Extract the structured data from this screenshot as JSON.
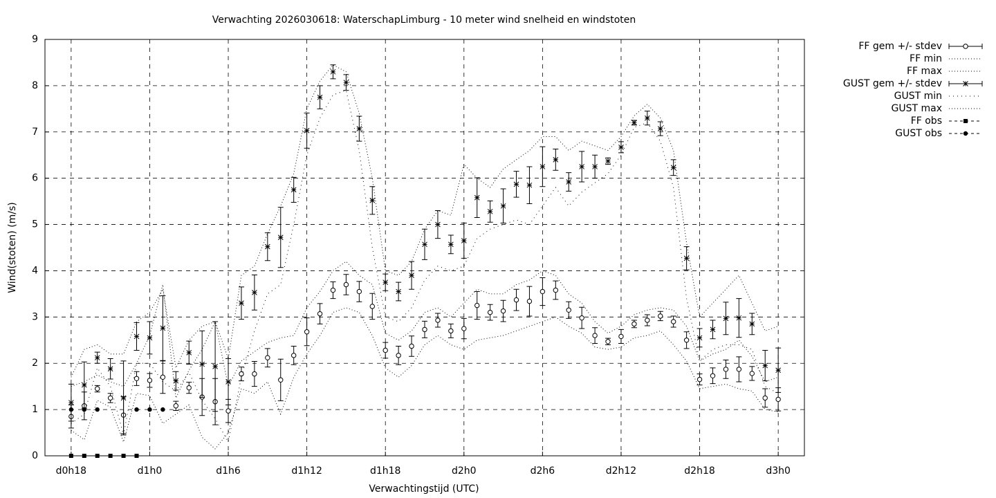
{
  "chart_data": {
    "type": "errorbar",
    "title": "Verwachting 2026030618: WaterschapLimburg - 10 meter wind snelheid en windstoten",
    "xlabel": "Verwachtingstijd (UTC)",
    "ylabel": "Wind(stoten) (m/s)",
    "grid": true,
    "legend": "outside-right",
    "x": [
      0,
      1,
      2,
      3,
      4,
      5,
      6,
      7,
      8,
      9,
      10,
      11,
      12,
      13,
      14,
      15,
      16,
      17,
      18,
      19,
      20,
      21,
      22,
      23,
      24,
      25,
      26,
      27,
      28,
      29,
      30,
      31,
      32,
      33,
      34,
      35,
      36,
      37,
      38,
      39,
      40,
      41,
      42,
      43,
      44,
      45,
      46,
      47,
      48,
      49,
      50,
      51,
      52,
      53,
      54
    ],
    "xlim": [
      -2,
      56
    ],
    "xticks": [
      {
        "value": 0,
        "label": "d0h18"
      },
      {
        "value": 6,
        "label": "d1h0"
      },
      {
        "value": 12,
        "label": "d1h6"
      },
      {
        "value": 18,
        "label": "d1h12"
      },
      {
        "value": 24,
        "label": "d1h18"
      },
      {
        "value": 30,
        "label": "d2h0"
      },
      {
        "value": 36,
        "label": "d2h6"
      },
      {
        "value": 42,
        "label": "d2h12"
      },
      {
        "value": 48,
        "label": "d2h18"
      },
      {
        "value": 54,
        "label": "d3h0"
      }
    ],
    "ylim": [
      0,
      9
    ],
    "yticks": [
      0,
      1,
      2,
      3,
      4,
      5,
      6,
      7,
      8,
      9
    ],
    "series": [
      {
        "name": "FF gem +/- stdev",
        "color": "#000000",
        "style": "errorbar",
        "marker": "circle",
        "values": [
          0.85,
          1.08,
          1.45,
          1.25,
          0.88,
          1.67,
          1.63,
          1.7,
          1.08,
          1.47,
          1.27,
          1.17,
          0.97,
          1.77,
          1.77,
          2.12,
          1.64,
          2.17,
          2.68,
          3.07,
          3.58,
          3.7,
          3.55,
          3.23,
          2.28,
          2.17,
          2.37,
          2.73,
          2.93,
          2.7,
          2.75,
          3.25,
          3.1,
          3.13,
          3.37,
          3.34,
          3.55,
          3.58,
          3.15,
          2.98,
          2.6,
          2.47,
          2.58,
          2.85,
          2.93,
          3.02,
          2.9,
          2.5,
          1.65,
          1.73,
          1.87,
          1.87,
          1.78,
          1.25,
          1.22
        ],
        "errors": [
          0.25,
          0.3,
          0.07,
          0.1,
          0.4,
          0.15,
          0.15,
          0.35,
          0.1,
          0.12,
          0.4,
          0.5,
          0.25,
          0.15,
          0.27,
          0.2,
          0.45,
          0.2,
          0.3,
          0.22,
          0.18,
          0.22,
          0.22,
          0.28,
          0.17,
          0.2,
          0.22,
          0.18,
          0.15,
          0.15,
          0.22,
          0.3,
          0.17,
          0.23,
          0.23,
          0.32,
          0.3,
          0.2,
          0.18,
          0.23,
          0.17,
          0.07,
          0.15,
          0.08,
          0.12,
          0.1,
          0.12,
          0.18,
          0.12,
          0.17,
          0.2,
          0.27,
          0.15,
          0.2,
          0.25
        ]
      },
      {
        "name": "FF min",
        "color": "#000000",
        "style": "dotted",
        "values": [
          0.55,
          0.35,
          1.2,
          1.05,
          0.3,
          1.35,
          1.3,
          0.7,
          0.9,
          1.1,
          0.4,
          0.15,
          0.5,
          1.45,
          1.35,
          1.6,
          0.9,
          1.7,
          2.2,
          2.6,
          3.1,
          3.2,
          3.1,
          2.6,
          1.9,
          1.7,
          1.95,
          2.4,
          2.6,
          2.4,
          2.3,
          2.5,
          2.55,
          2.6,
          2.7,
          2.8,
          2.9,
          3.0,
          2.8,
          2.65,
          2.35,
          2.3,
          2.35,
          2.55,
          2.6,
          2.7,
          2.4,
          2.05,
          1.45,
          1.5,
          1.55,
          1.45,
          1.4,
          1.0,
          0.95
        ]
      },
      {
        "name": "FF max",
        "color": "#000000",
        "style": "dotted",
        "values": [
          1.5,
          1.6,
          1.75,
          1.6,
          1.5,
          2.0,
          2.6,
          3.7,
          1.25,
          1.85,
          2.3,
          2.9,
          1.5,
          2.05,
          2.25,
          2.45,
          2.55,
          2.6,
          3.2,
          3.55,
          4.0,
          4.2,
          3.9,
          3.7,
          2.65,
          2.5,
          2.7,
          3.1,
          3.2,
          3.0,
          3.3,
          3.6,
          3.5,
          3.5,
          3.7,
          3.8,
          4.0,
          3.9,
          3.5,
          3.3,
          2.9,
          2.65,
          2.8,
          3.05,
          3.15,
          3.2,
          3.15,
          2.8,
          2.05,
          2.2,
          2.3,
          2.5,
          2.15,
          1.6,
          1.7
        ]
      },
      {
        "name": "GUST gem +/- stdev",
        "color": "#000000",
        "style": "errorbar",
        "marker": "star",
        "values": [
          1.15,
          1.53,
          2.12,
          1.88,
          1.25,
          2.58,
          2.55,
          2.76,
          1.62,
          2.23,
          1.98,
          1.93,
          1.6,
          3.3,
          3.53,
          4.52,
          4.72,
          5.75,
          7.03,
          7.75,
          8.3,
          8.07,
          7.07,
          5.52,
          3.75,
          3.55,
          3.9,
          4.57,
          5.0,
          4.57,
          4.65,
          5.58,
          5.28,
          5.4,
          5.87,
          5.85,
          6.25,
          6.4,
          5.92,
          6.25,
          6.25,
          6.37,
          6.67,
          7.2,
          7.3,
          7.07,
          6.23,
          4.27,
          2.55,
          2.73,
          2.97,
          2.98,
          2.85,
          1.95,
          1.85
        ],
        "errors": [
          0.4,
          0.5,
          0.12,
          0.22,
          0.8,
          0.3,
          0.35,
          0.7,
          0.2,
          0.25,
          0.72,
          0.97,
          0.5,
          0.35,
          0.38,
          0.3,
          0.65,
          0.27,
          0.38,
          0.25,
          0.15,
          0.17,
          0.27,
          0.3,
          0.18,
          0.2,
          0.3,
          0.33,
          0.3,
          0.2,
          0.38,
          0.43,
          0.23,
          0.37,
          0.28,
          0.4,
          0.43,
          0.23,
          0.2,
          0.33,
          0.25,
          0.07,
          0.12,
          0.05,
          0.15,
          0.15,
          0.17,
          0.25,
          0.2,
          0.2,
          0.35,
          0.42,
          0.23,
          0.33,
          0.48
        ]
      },
      {
        "name": "GUST min",
        "color": "#000000",
        "style": "dotted-wide",
        "values": [
          0.7,
          0.9,
          1.9,
          1.5,
          0.45,
          2.0,
          2.0,
          1.6,
          1.4,
          1.8,
          1.2,
          0.8,
          0.3,
          1.7,
          2.7,
          3.5,
          3.7,
          5.0,
          6.5,
          7.3,
          7.8,
          7.9,
          6.6,
          4.5,
          3.0,
          2.9,
          3.2,
          3.8,
          4.1,
          4.0,
          4.1,
          4.7,
          4.9,
          5.0,
          5.1,
          5.0,
          5.4,
          5.8,
          5.4,
          5.7,
          5.9,
          6.1,
          6.5,
          7.1,
          7.2,
          6.8,
          5.8,
          3.4,
          2.05,
          2.3,
          2.4,
          2.4,
          2.3,
          1.5,
          1.35
        ]
      },
      {
        "name": "GUST max",
        "color": "#000000",
        "style": "dotted",
        "values": [
          1.7,
          2.3,
          2.4,
          2.2,
          2.2,
          2.9,
          3.1,
          3.6,
          1.9,
          2.5,
          2.8,
          2.9,
          2.1,
          3.9,
          4.1,
          4.8,
          5.4,
          6.1,
          7.5,
          8.1,
          8.45,
          8.3,
          7.4,
          6.0,
          4.0,
          3.9,
          4.2,
          4.9,
          5.3,
          5.2,
          6.3,
          6.0,
          5.8,
          6.2,
          6.4,
          6.6,
          6.9,
          6.9,
          6.6,
          6.8,
          6.7,
          6.6,
          6.9,
          7.35,
          7.6,
          7.3,
          6.6,
          4.6,
          3.0,
          3.3,
          3.6,
          3.9,
          3.3,
          2.7,
          2.8
        ]
      },
      {
        "name": "FF obs",
        "color": "#000000",
        "style": "points",
        "marker": "square",
        "values": [
          0,
          0,
          0,
          0,
          0,
          0,
          null,
          null,
          null,
          null,
          null,
          null,
          null,
          null,
          null,
          null,
          null,
          null,
          null,
          null,
          null,
          null,
          null,
          null,
          null,
          null,
          null,
          null,
          null,
          null,
          null,
          null,
          null,
          null,
          null,
          null,
          null,
          null,
          null,
          null,
          null,
          null,
          null,
          null,
          null,
          null,
          null,
          null,
          null,
          null,
          null,
          null,
          null,
          null,
          null
        ]
      },
      {
        "name": "GUST obs",
        "color": "#000000",
        "style": "points",
        "marker": "dot",
        "values": [
          1,
          1,
          1,
          null,
          null,
          1,
          1,
          1,
          null,
          null,
          null,
          null,
          null,
          null,
          null,
          null,
          null,
          null,
          null,
          null,
          null,
          null,
          null,
          null,
          null,
          null,
          null,
          null,
          null,
          null,
          null,
          null,
          null,
          null,
          null,
          null,
          null,
          null,
          null,
          null,
          null,
          null,
          null,
          null,
          null,
          null,
          null,
          null,
          null,
          null,
          null,
          null,
          null,
          null,
          null
        ]
      }
    ]
  }
}
